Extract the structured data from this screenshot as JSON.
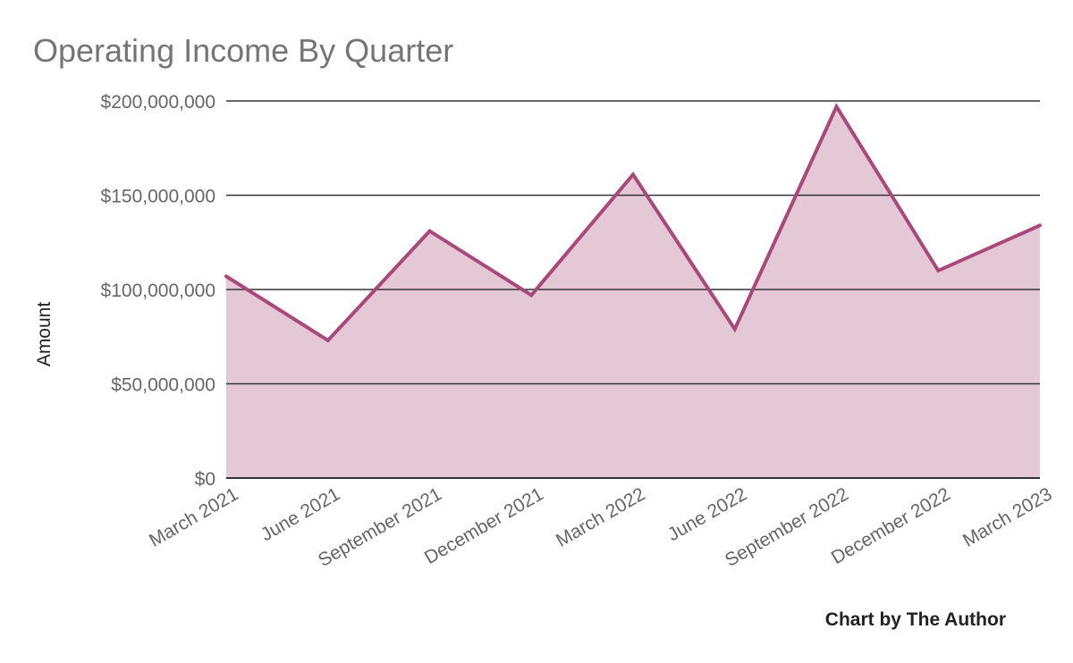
{
  "chart_data": {
    "type": "area",
    "title": "Operating Income By Quarter",
    "xlabel": "",
    "ylabel": "Amount",
    "credit": "Chart by The Author",
    "categories": [
      "March 2021",
      "June 2021",
      "September 2021",
      "December 2021",
      "March 2022",
      "June 2022",
      "September 2022",
      "December 2022",
      "March 2023"
    ],
    "series": [
      {
        "values": [
          107000000,
          73000000,
          131000000,
          97000000,
          161000000,
          79000000,
          197000000,
          110000000,
          134000000
        ],
        "line_color": "#a8497a",
        "fill_color": "#e4c8d6"
      }
    ],
    "ylim": [
      0,
      200000000
    ],
    "yticks": [
      0,
      50000000,
      100000000,
      150000000,
      200000000
    ],
    "ytick_labels": [
      "$0",
      "$50,000,000",
      "$100,000,000",
      "$150,000,000",
      "$200,000,000"
    ],
    "grid": true,
    "legend": "none"
  }
}
